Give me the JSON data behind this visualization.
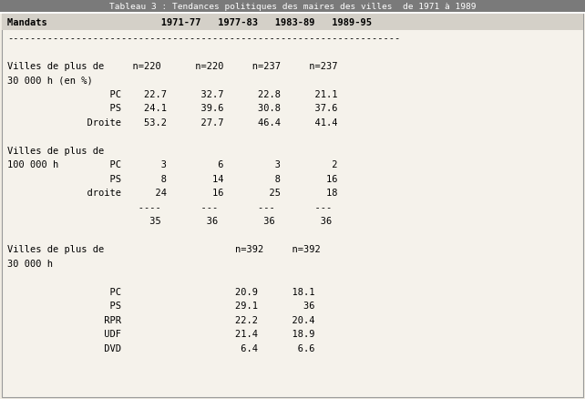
{
  "title": "Tableau 3 : Tendances politiques des maires des villes  de 1971 à 1989",
  "bg_color": "#f0ece3",
  "title_bg": "#7a7a7a",
  "header_bg": "#d4d0c8",
  "content_bg": "#f5f2eb",
  "border_color": "#999999",
  "lines": [
    {
      "text": "Mandats                    1971-77   1977-83   1983-89   1989-95",
      "bold": true
    },
    {
      "text": "---------------------------------------------------------------------",
      "bold": false
    },
    {
      "text": "",
      "bold": false
    },
    {
      "text": "Villes de plus de     n=220      n=220     n=237     n=237",
      "bold": false
    },
    {
      "text": "30 000 h (en %)",
      "bold": false
    },
    {
      "text": "                  PC    22.7      32.7      22.8      21.1",
      "bold": false
    },
    {
      "text": "                  PS    24.1      39.6      30.8      37.6",
      "bold": false
    },
    {
      "text": "              Droite    53.2      27.7      46.4      41.4",
      "bold": false
    },
    {
      "text": "",
      "bold": false
    },
    {
      "text": "Villes de plus de",
      "bold": false
    },
    {
      "text": "100 000 h         PC       3         6         3         2",
      "bold": false
    },
    {
      "text": "                  PS       8        14         8        16",
      "bold": false
    },
    {
      "text": "              droite      24        16        25        18",
      "bold": false
    },
    {
      "text": "                       ----       ---       ---       ---",
      "bold": false
    },
    {
      "text": "                         35        36        36        36",
      "bold": false
    },
    {
      "text": "",
      "bold": false
    },
    {
      "text": "Villes de plus de                       n=392     n=392",
      "bold": false
    },
    {
      "text": "30 000 h",
      "bold": false
    },
    {
      "text": "",
      "bold": false
    },
    {
      "text": "                  PC                    20.9      18.1",
      "bold": false
    },
    {
      "text": "                  PS                    29.1        36",
      "bold": false
    },
    {
      "text": "                 RPR                    22.2      20.4",
      "bold": false
    },
    {
      "text": "                 UDF                    21.4      18.9",
      "bold": false
    },
    {
      "text": "                 DVD                     6.4       6.6",
      "bold": false
    }
  ]
}
